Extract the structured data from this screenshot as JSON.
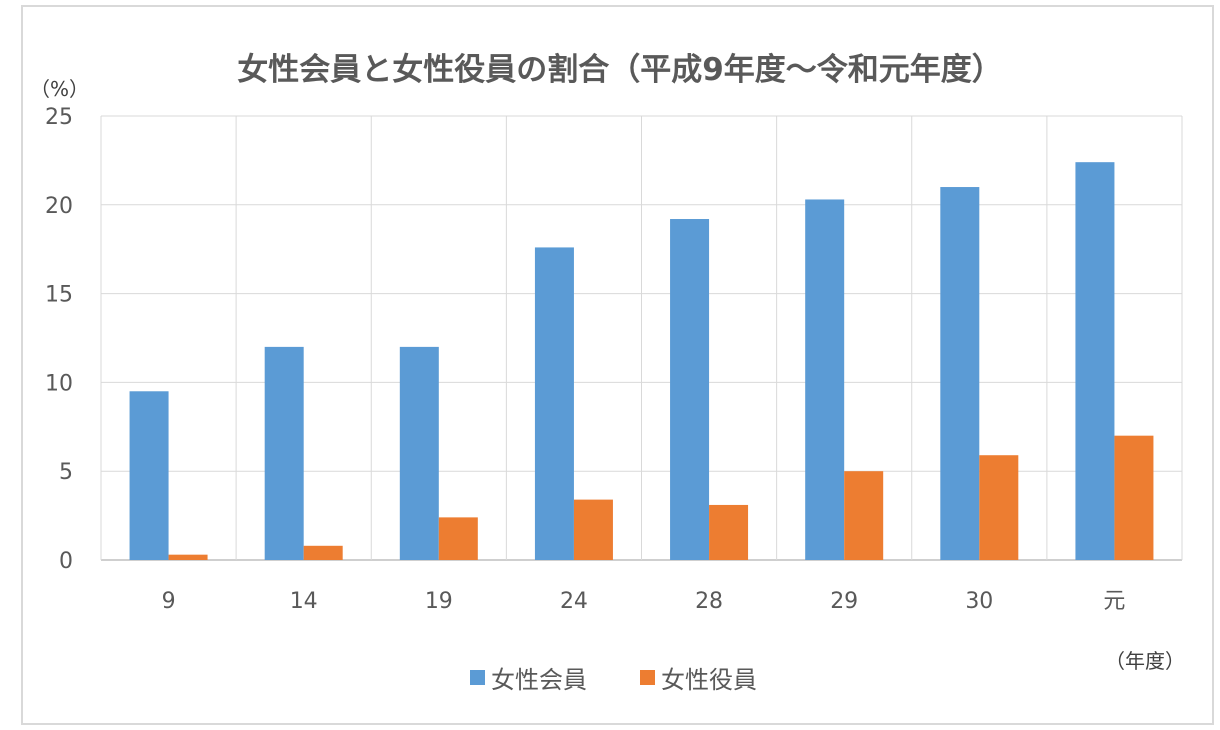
{
  "chart_data": {
    "type": "bar",
    "title": "女性会員と女性役員の割合（平成9年度～令和元年度）",
    "ylabel": "（%）",
    "xlabel": "（年度）",
    "categories": [
      "9",
      "14",
      "19",
      "24",
      "28",
      "29",
      "30",
      "元"
    ],
    "series": [
      {
        "name": "女性会員",
        "color": "#5b9bd5",
        "values": [
          9.5,
          12.0,
          12.0,
          17.6,
          19.2,
          20.3,
          21.0,
          22.4
        ]
      },
      {
        "name": "女性役員",
        "color": "#ed7d31",
        "values": [
          0.3,
          0.8,
          2.4,
          3.4,
          3.1,
          5.0,
          5.9,
          7.0
        ]
      }
    ],
    "ylim": [
      0,
      25
    ],
    "yticks": [
      0,
      5,
      10,
      15,
      20,
      25
    ],
    "grid": true,
    "legend": "bottom"
  }
}
